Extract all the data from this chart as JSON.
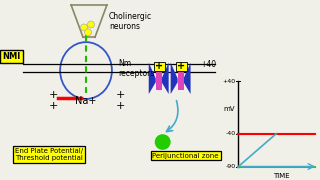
{
  "bg_color": "#f0f0e8",
  "nmi_label": "NMI",
  "cholinergic_label": "Cholinergic\nneurons",
  "nm_receptors_label": "Nm\nreceptors",
  "na_label": "Na+",
  "epp_label": "End Plate Potential/\nThreshold potential",
  "perij_label": "Perijunctional zone",
  "plus40_label": "+40",
  "minus40_label": "-40",
  "minus90_label": "-90",
  "mv_label": "mV",
  "time_label": "TIME",
  "line_red": "#ff0000",
  "line_green": "#33cc00",
  "line_cyan": "#44aacc",
  "nerve_color": "#3355cc",
  "receptor_blue": "#2233bb",
  "receptor_pink": "#dd44bb",
  "yellow": "#ffff00",
  "green_circle": "#22cc00"
}
